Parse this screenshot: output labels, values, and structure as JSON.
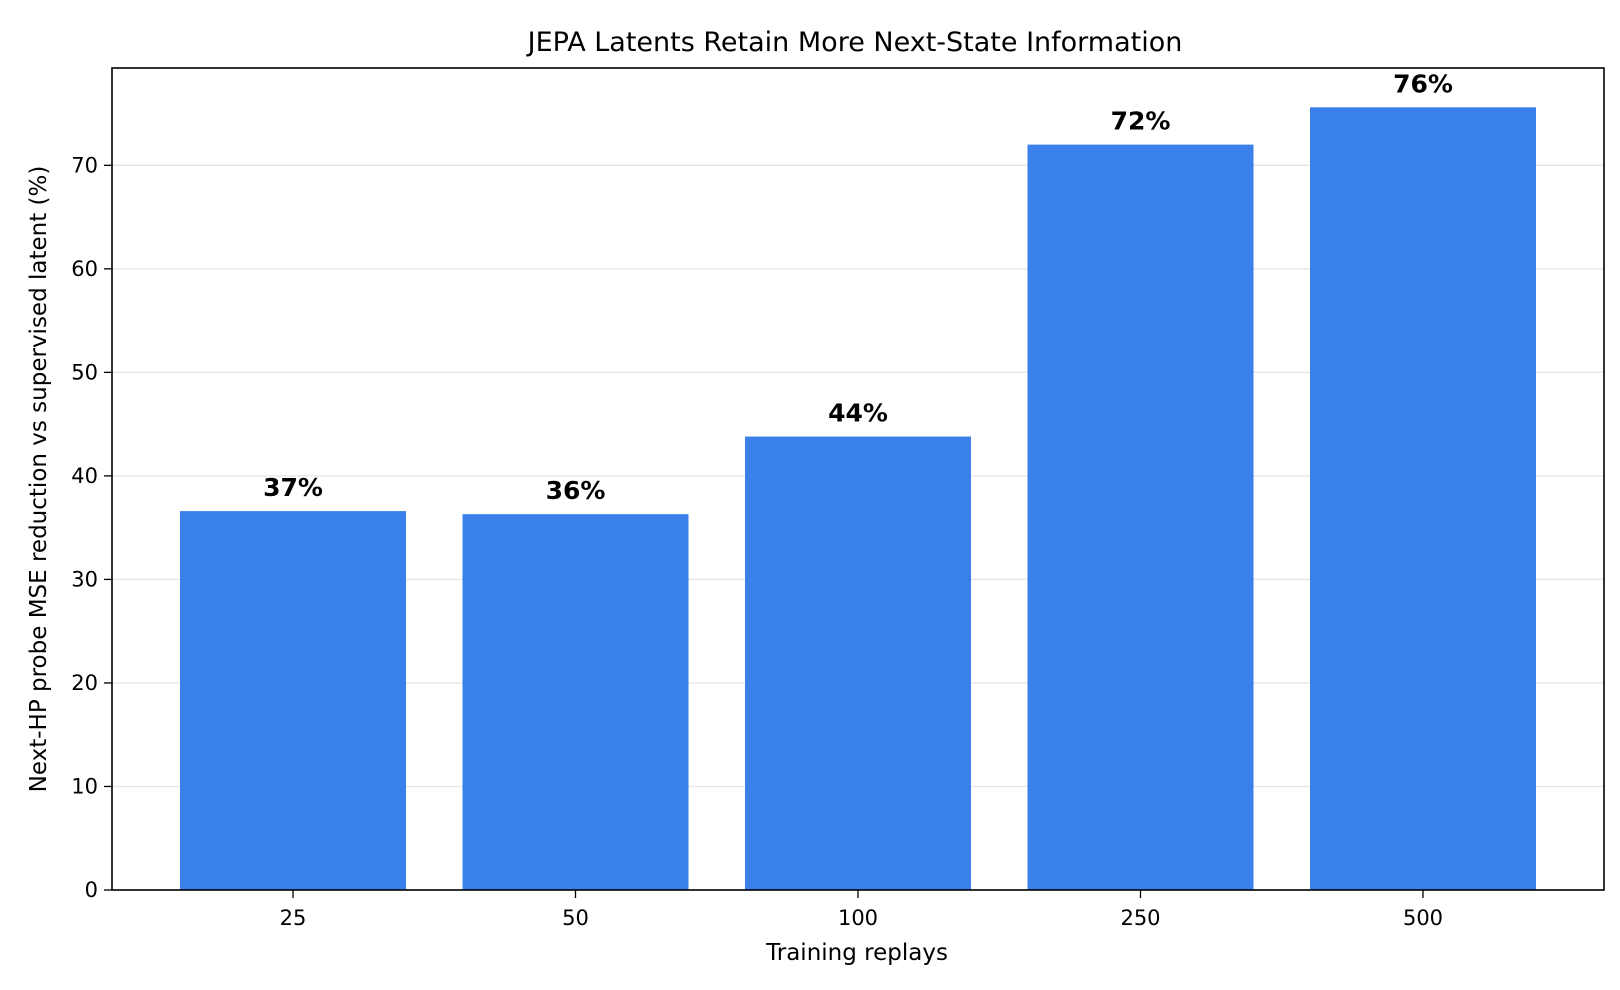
{
  "chart_data": {
    "type": "bar",
    "title": "JEPA Latents Retain More Next-State Information",
    "xlabel": "Training replays",
    "ylabel": "Next-HP probe MSE reduction vs supervised latent (%)",
    "categories": [
      "25",
      "50",
      "100",
      "250",
      "500"
    ],
    "values": [
      36.6,
      36.3,
      43.8,
      72.0,
      75.6
    ],
    "data_labels": [
      "37%",
      "36%",
      "44%",
      "72%",
      "76%"
    ],
    "ylim": [
      0,
      79.4
    ],
    "yticks": [
      0,
      10,
      20,
      30,
      40,
      50,
      60,
      70
    ],
    "grid": true,
    "bar_color": "#3a80ea"
  }
}
